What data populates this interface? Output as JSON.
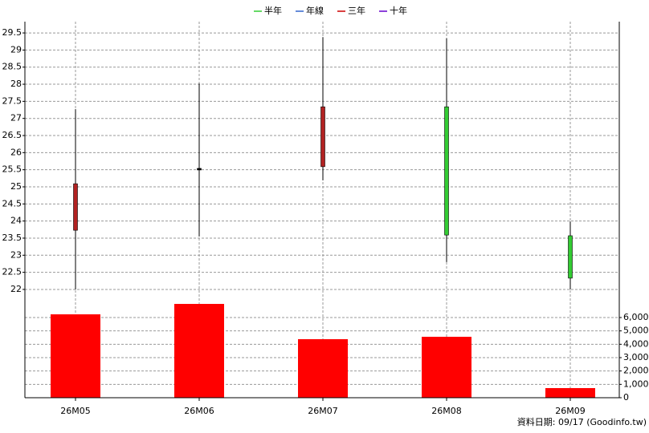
{
  "chart_data": {
    "type": "candlestick",
    "legend": [
      {
        "name": "半年",
        "color": "#33cc33"
      },
      {
        "name": "年線",
        "color": "#3366cc"
      },
      {
        "name": "三年",
        "color": "#cc0000"
      },
      {
        "name": "十年",
        "color": "#6600cc"
      }
    ],
    "categories": [
      "26M05",
      "26M06",
      "26M07",
      "26M08",
      "26M09"
    ],
    "open": [
      23.73,
      25.54,
      25.59,
      27.34,
      23.57
    ],
    "high": [
      27.27,
      28.02,
      29.38,
      29.34,
      23.99
    ],
    "low": [
      22.0,
      23.55,
      25.19,
      22.8,
      22.0
    ],
    "close": [
      25.09,
      25.54,
      27.34,
      23.59,
      22.33
    ],
    "up_color": "#b22222",
    "down_color": "#33cc33",
    "ylim": [
      21.6,
      29.83
    ],
    "yticks": [
      22,
      22.5,
      23,
      23.5,
      24,
      24.5,
      25,
      25.5,
      26,
      26.5,
      27,
      27.5,
      28,
      28.5,
      29,
      29.5
    ],
    "grid": true,
    "volume": {
      "values": [
        6240,
        7020,
        4380,
        4560,
        720
      ],
      "color": "#ff0000",
      "ylim": [
        0,
        7080
      ],
      "yticks": [
        0,
        {
          "value": 1000,
          "label": "1,000"
        },
        {
          "value": 2000,
          "label": "2,000"
        },
        {
          "value": 3000,
          "label": "3,000"
        },
        {
          "value": 4000,
          "label": "4,000"
        },
        {
          "value": 5000,
          "label": "5,000"
        },
        {
          "value": 6000,
          "label": "6,000"
        }
      ]
    },
    "source": "資料日期: 09/17  (Goodinfo.tw)"
  }
}
